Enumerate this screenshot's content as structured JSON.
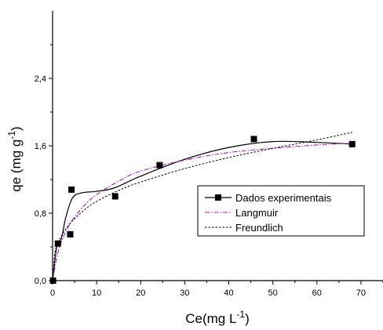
{
  "chart_data": {
    "type": "scatter",
    "title": "",
    "xlabel": {
      "base": "Ce(mg L",
      "sup": "-1",
      "suffix": ")"
    },
    "ylabel": {
      "base": "qe (mg g",
      "sup": "-1",
      "suffix": ")"
    },
    "xlim": [
      0,
      75
    ],
    "ylim": [
      0,
      3.2
    ],
    "x_ticks": [
      0,
      10,
      20,
      30,
      40,
      50,
      60,
      70
    ],
    "y_ticks": [
      0.0,
      0.8,
      1.6,
      2.4
    ],
    "x_tick_labels": [
      "0",
      "10",
      "20",
      "30",
      "40",
      "50",
      "60",
      "70"
    ],
    "y_tick_labels": [
      "0,0",
      "0,8",
      "1,6",
      "2,4"
    ],
    "grid": false,
    "legend_position": "lower-right",
    "series": [
      {
        "name": "Dados experimentais",
        "style": "solid-with-square-markers",
        "color": "#000000",
        "points": [
          {
            "x": 0.1,
            "y": 0.0
          },
          {
            "x": 1.2,
            "y": 0.44
          },
          {
            "x": 4.0,
            "y": 0.55
          },
          {
            "x": 4.3,
            "y": 1.08
          },
          {
            "x": 14.2,
            "y": 1.0
          },
          {
            "x": 24.3,
            "y": 1.37
          },
          {
            "x": 45.7,
            "y": 1.68
          },
          {
            "x": 68.0,
            "y": 1.62
          }
        ],
        "curve": [
          {
            "x": 0.0,
            "y": 0.0
          },
          {
            "x": 1.0,
            "y": 0.42
          },
          {
            "x": 2.0,
            "y": 0.5
          },
          {
            "x": 3.0,
            "y": 0.75
          },
          {
            "x": 4.5,
            "y": 0.98
          },
          {
            "x": 6.5,
            "y": 1.04
          },
          {
            "x": 10.0,
            "y": 1.06
          },
          {
            "x": 14.0,
            "y": 1.1
          },
          {
            "x": 20.0,
            "y": 1.24
          },
          {
            "x": 30.0,
            "y": 1.44
          },
          {
            "x": 40.0,
            "y": 1.58
          },
          {
            "x": 50.0,
            "y": 1.65
          },
          {
            "x": 60.0,
            "y": 1.64
          },
          {
            "x": 68.0,
            "y": 1.62
          }
        ]
      },
      {
        "name": "Langmuir",
        "style": "dash-dot",
        "color": "#a020c0",
        "curve": [
          {
            "x": 0.0,
            "y": 0.0
          },
          {
            "x": 1.0,
            "y": 0.28
          },
          {
            "x": 2.0,
            "y": 0.46
          },
          {
            "x": 4.0,
            "y": 0.68
          },
          {
            "x": 7.0,
            "y": 0.88
          },
          {
            "x": 10.0,
            "y": 1.02
          },
          {
            "x": 15.0,
            "y": 1.18
          },
          {
            "x": 20.0,
            "y": 1.3
          },
          {
            "x": 30.0,
            "y": 1.43
          },
          {
            "x": 40.0,
            "y": 1.52
          },
          {
            "x": 50.0,
            "y": 1.57
          },
          {
            "x": 60.0,
            "y": 1.61
          },
          {
            "x": 68.0,
            "y": 1.63
          }
        ]
      },
      {
        "name": "Freundlich",
        "style": "dotted",
        "color": "#000000",
        "curve": [
          {
            "x": 0.0,
            "y": 0.0
          },
          {
            "x": 0.5,
            "y": 0.32
          },
          {
            "x": 1.0,
            "y": 0.42
          },
          {
            "x": 2.0,
            "y": 0.53
          },
          {
            "x": 4.0,
            "y": 0.68
          },
          {
            "x": 7.0,
            "y": 0.83
          },
          {
            "x": 10.0,
            "y": 0.94
          },
          {
            "x": 15.0,
            "y": 1.07
          },
          {
            "x": 20.0,
            "y": 1.17
          },
          {
            "x": 30.0,
            "y": 1.33
          },
          {
            "x": 40.0,
            "y": 1.46
          },
          {
            "x": 50.0,
            "y": 1.57
          },
          {
            "x": 60.0,
            "y": 1.67
          },
          {
            "x": 68.0,
            "y": 1.76
          }
        ]
      }
    ]
  }
}
